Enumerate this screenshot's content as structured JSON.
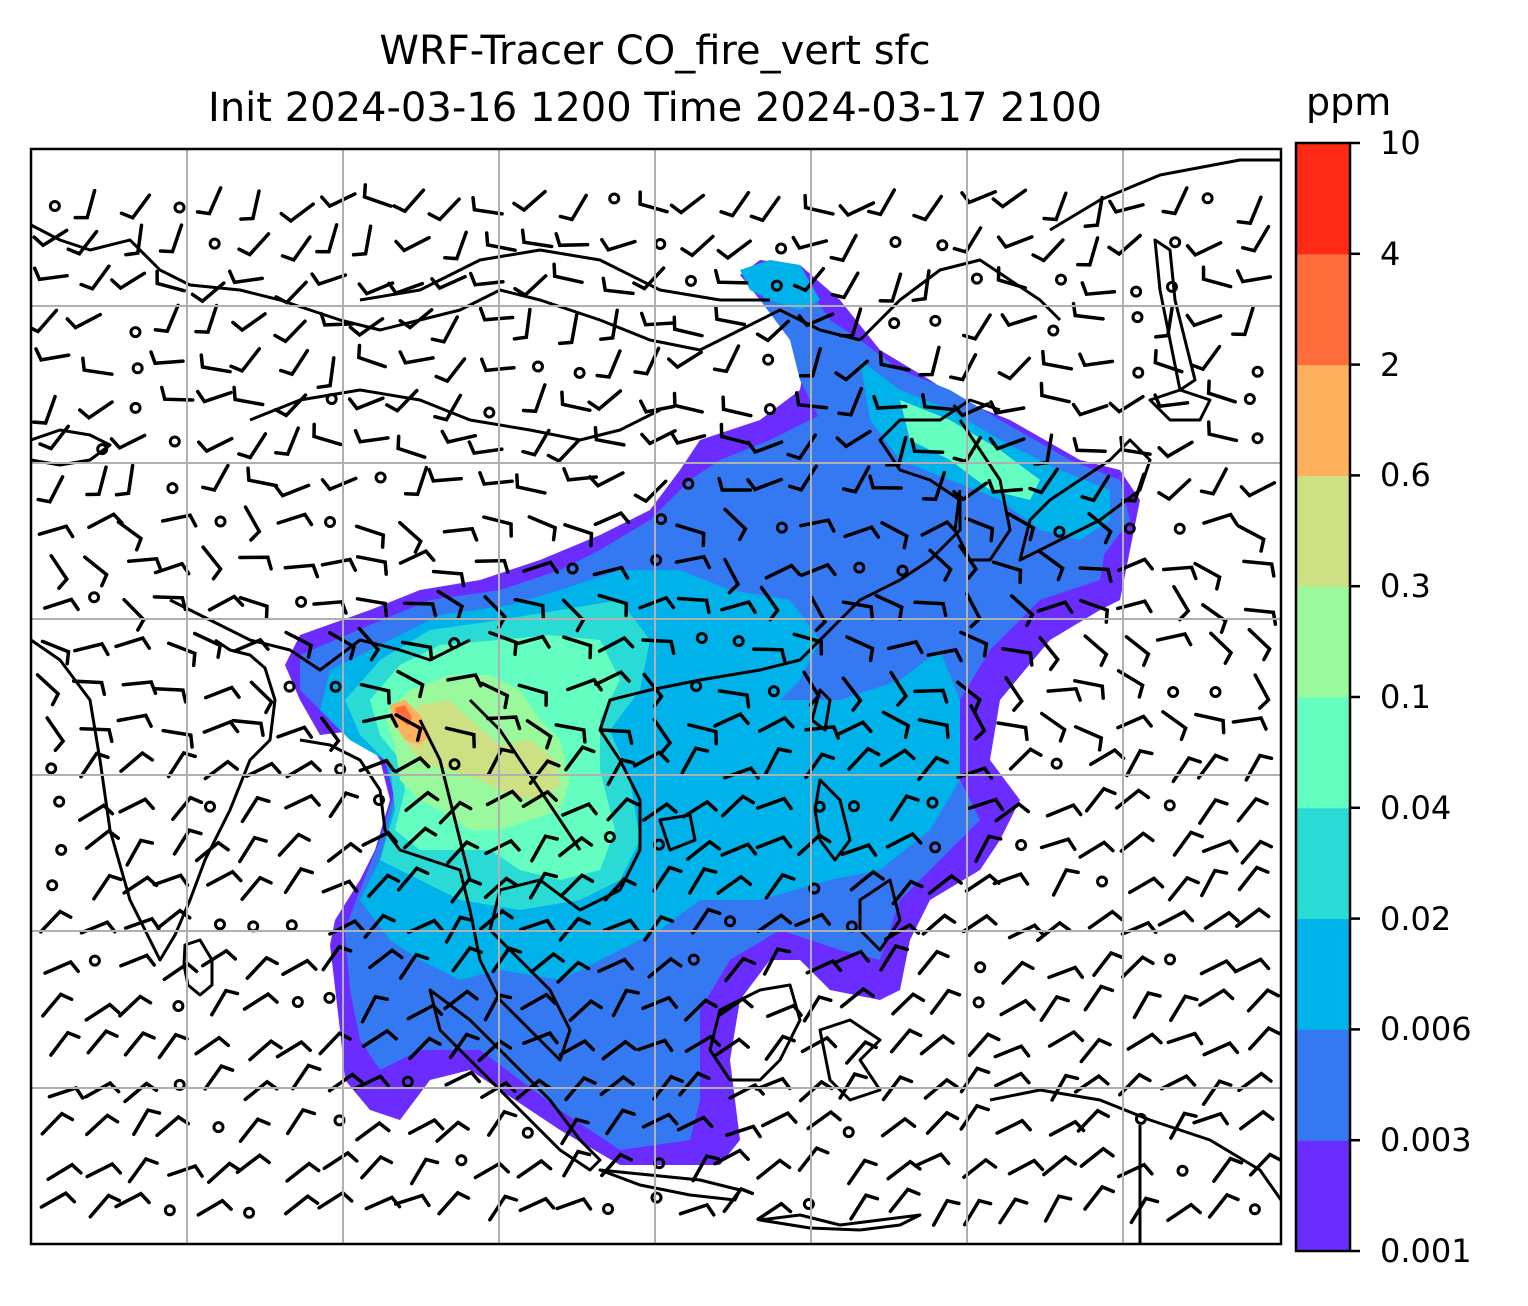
{
  "title": {
    "line1": "WRF-Tracer CO_fire_vert sfc",
    "line2": "Init 2024-03-16 1200 Time 2024-03-17 2100"
  },
  "colorbar": {
    "units": "ppm",
    "levels": [
      "0.001",
      "0.003",
      "0.006",
      "0.02",
      "0.04",
      "0.1",
      "0.3",
      "0.6",
      "2",
      "4",
      "10"
    ],
    "colors": [
      "#6a2cff",
      "#3479f2",
      "#00b2ea",
      "#2adad4",
      "#64ffc0",
      "#99f99c",
      "#cde084",
      "#ffb05c",
      "#ff6e3a",
      "#ff2a16"
    ]
  },
  "map": {
    "region": "South and Southeast Asia, China, Korea, Japan",
    "wind_barbs": "black",
    "gridlines": true
  }
}
